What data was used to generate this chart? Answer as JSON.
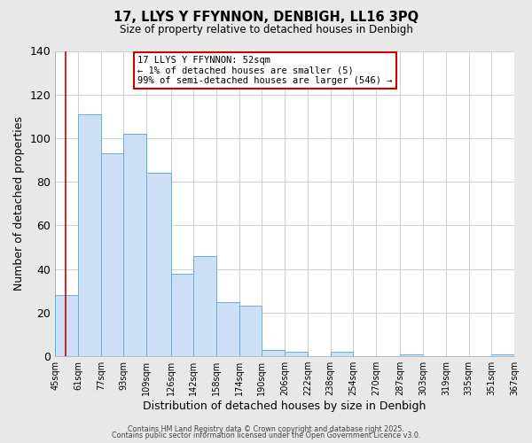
{
  "title": "17, LLYS Y FFYNNON, DENBIGH, LL16 3PQ",
  "subtitle": "Size of property relative to detached houses in Denbigh",
  "xlabel": "Distribution of detached houses by size in Denbigh",
  "ylabel": "Number of detached properties",
  "bar_edges": [
    45,
    61,
    77,
    93,
    109,
    126,
    142,
    158,
    174,
    190,
    206,
    222,
    238,
    254,
    270,
    287,
    303,
    319,
    335,
    351,
    367
  ],
  "bar_heights": [
    28,
    111,
    93,
    102,
    84,
    38,
    46,
    25,
    23,
    3,
    2,
    0,
    2,
    0,
    0,
    1,
    0,
    0,
    0,
    1
  ],
  "bar_color": "#ccdff5",
  "bar_edge_color": "#6aafd6",
  "grid_color": "#d0d0d0",
  "bg_color": "#e8e8e8",
  "plot_bg_color": "#ffffff",
  "red_line_x": 52,
  "ylim": [
    0,
    140
  ],
  "yticks": [
    0,
    20,
    40,
    60,
    80,
    100,
    120,
    140
  ],
  "tick_labels": [
    "45sqm",
    "61sqm",
    "77sqm",
    "93sqm",
    "109sqm",
    "126sqm",
    "142sqm",
    "158sqm",
    "174sqm",
    "190sqm",
    "206sqm",
    "222sqm",
    "238sqm",
    "254sqm",
    "270sqm",
    "287sqm",
    "303sqm",
    "319sqm",
    "335sqm",
    "351sqm",
    "367sqm"
  ],
  "annotation_title": "17 LLYS Y FFYNNON: 52sqm",
  "annotation_line1": "← 1% of detached houses are smaller (5)",
  "annotation_line2": "99% of semi-detached houses are larger (546) →",
  "annotation_box_edge": "#cc0000",
  "footer_line1": "Contains HM Land Registry data © Crown copyright and database right 2025.",
  "footer_line2": "Contains public sector information licensed under the Open Government Licence v3.0."
}
